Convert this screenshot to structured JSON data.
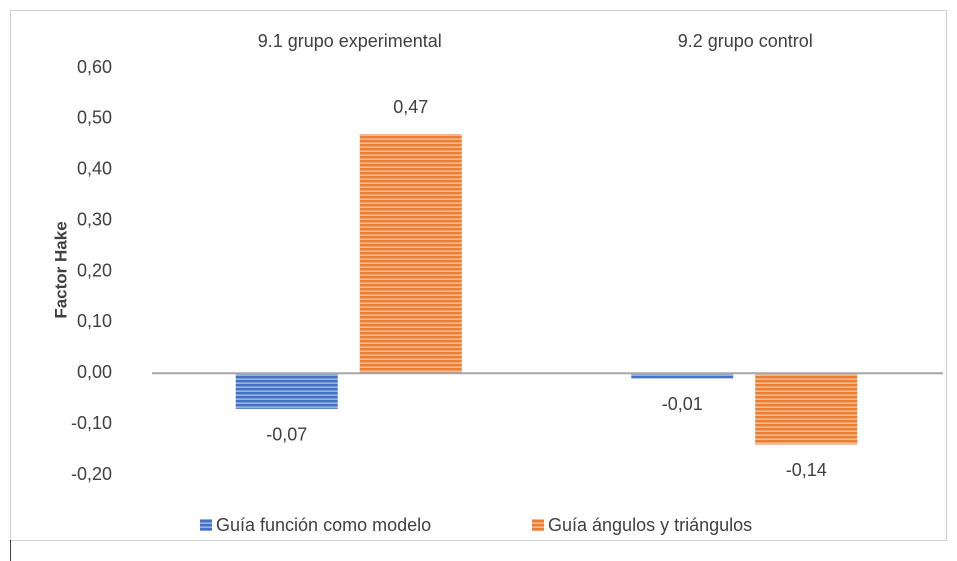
{
  "chart_data": {
    "type": "bar",
    "ylabel": "Factor Hake",
    "categories": [
      "9.1 grupo experimental",
      "9.2 grupo control"
    ],
    "series": [
      {
        "name": "Guía función como modelo",
        "color": "#4472c4",
        "values": [
          -0.07,
          -0.01
        ],
        "value_labels": [
          "-0,07",
          "-0,01"
        ]
      },
      {
        "name": "Guía ángulos y triángulos",
        "color": "#ed7d31",
        "values": [
          0.47,
          -0.14
        ],
        "value_labels": [
          "0,47",
          "-0,14"
        ]
      }
    ],
    "ylim": [
      -0.2,
      0.6
    ],
    "yticks": [
      {
        "value": -0.2,
        "label": "-0,20"
      },
      {
        "value": -0.1,
        "label": "-0,10"
      },
      {
        "value": 0,
        "label": "0,00"
      },
      {
        "value": 0.1,
        "label": "0,10"
      },
      {
        "value": 0.2,
        "label": "0,20"
      },
      {
        "value": 0.3,
        "label": "0,30"
      },
      {
        "value": 0.4,
        "label": "0,40"
      },
      {
        "value": 0.5,
        "label": "0,50"
      },
      {
        "value": 0.6,
        "label": "0,60"
      }
    ],
    "grid": false,
    "legend": "bottom"
  }
}
